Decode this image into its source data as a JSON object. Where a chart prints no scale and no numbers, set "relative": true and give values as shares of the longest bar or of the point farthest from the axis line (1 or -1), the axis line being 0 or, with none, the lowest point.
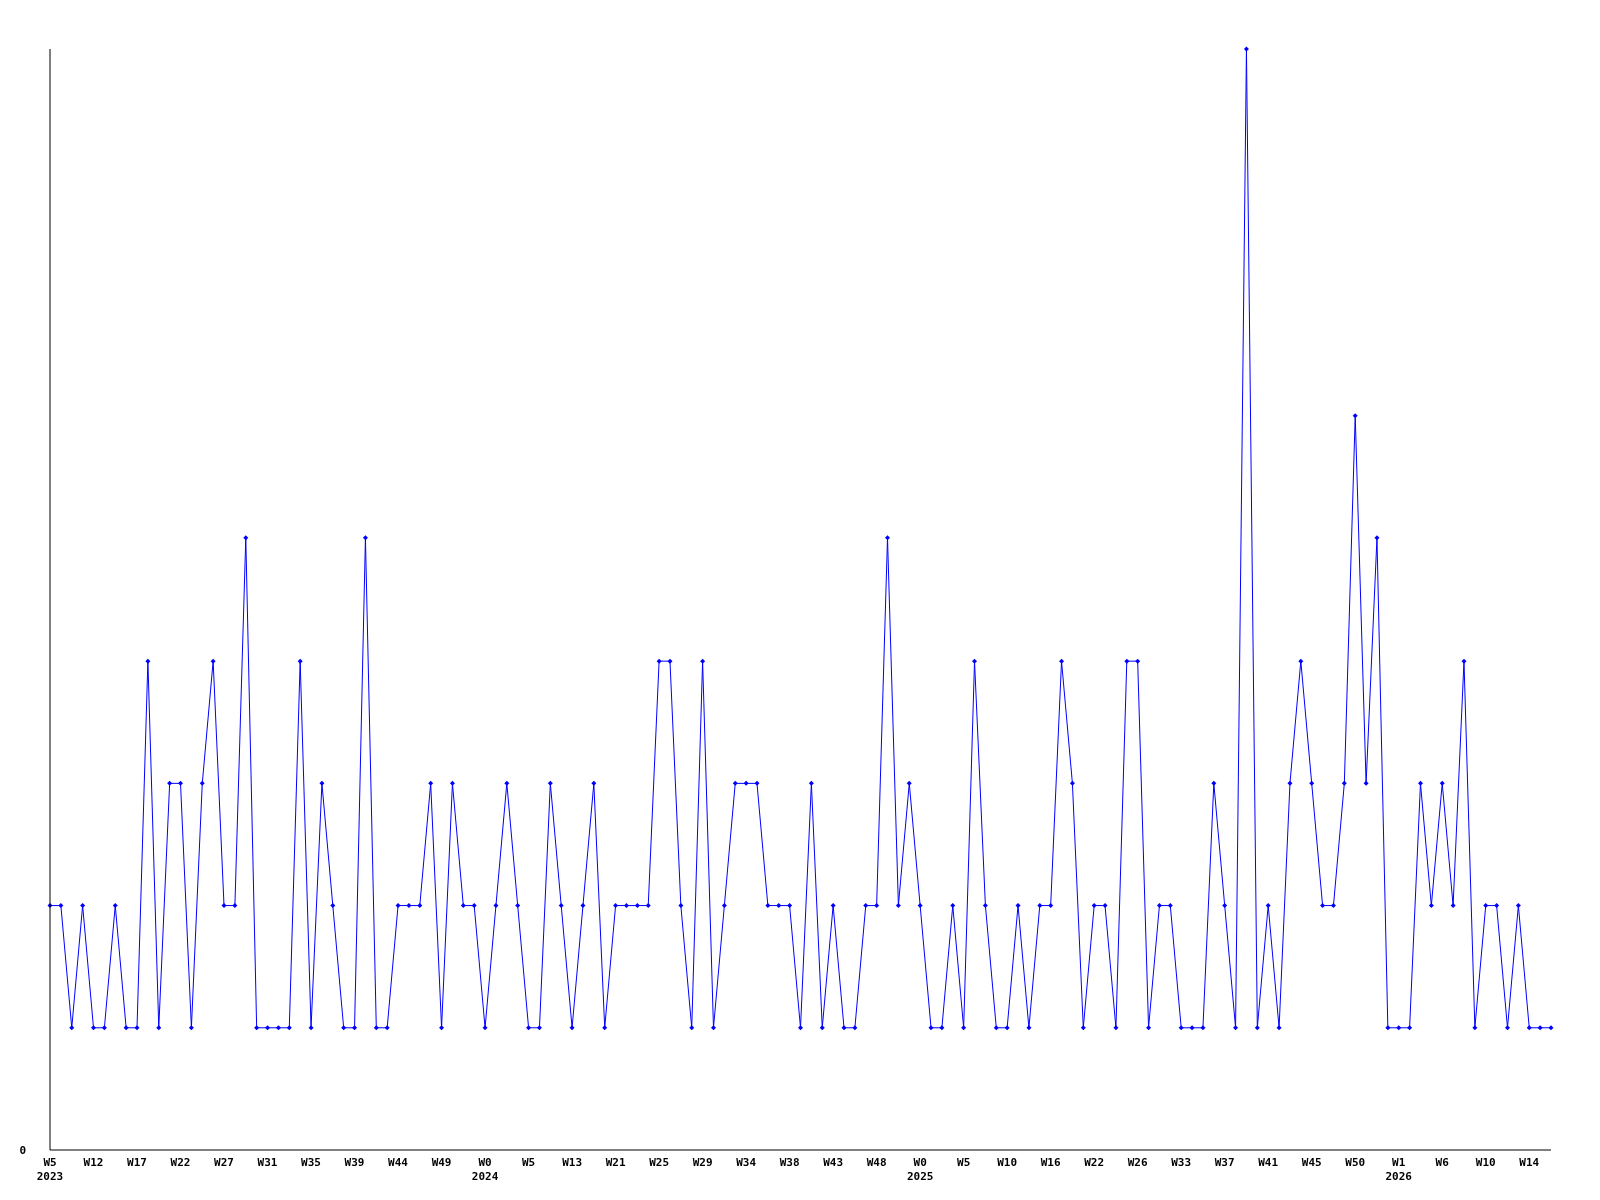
{
  "chart_data": {
    "type": "line",
    "relative": true,
    "marker": "diamond",
    "grid": false,
    "categories": [
      "W5\n2023",
      null,
      null,
      null,
      "W12",
      null,
      null,
      null,
      "W17",
      null,
      null,
      null,
      "W22",
      null,
      null,
      null,
      "W27",
      null,
      null,
      null,
      "W31",
      null,
      null,
      null,
      "W35",
      null,
      null,
      null,
      "W39",
      null,
      null,
      null,
      "W44",
      null,
      null,
      null,
      "W49",
      null,
      null,
      null,
      "W0\n2024",
      null,
      null,
      null,
      "W5",
      null,
      null,
      null,
      "W13",
      null,
      null,
      null,
      "W21",
      null,
      null,
      null,
      "W25",
      null,
      null,
      null,
      "W29",
      null,
      null,
      null,
      "W34",
      null,
      null,
      null,
      "W38",
      null,
      null,
      null,
      "W43",
      null,
      null,
      null,
      "W48",
      null,
      null,
      null,
      "W0\n2025",
      null,
      null,
      null,
      "W5",
      null,
      null,
      null,
      "W10",
      null,
      null,
      null,
      "W16",
      null,
      null,
      null,
      "W22",
      null,
      null,
      null,
      "W26",
      null,
      null,
      null,
      "W33",
      null,
      null,
      null,
      "W37",
      null,
      null,
      null,
      "W41",
      null,
      null,
      null,
      "W45",
      null,
      null,
      null,
      "W50",
      null,
      null,
      null,
      "W1\n2026",
      null,
      null,
      null,
      "W6",
      null,
      null,
      null,
      "W10",
      null,
      null,
      null,
      "W14",
      null,
      null
    ],
    "series": [
      {
        "color": "#0000ff",
        "values": [
          0.222,
          0.222,
          0.111,
          0.222,
          0.111,
          0.111,
          0.222,
          0.111,
          0.111,
          0.444,
          0.111,
          0.333,
          0.333,
          0.111,
          0.333,
          0.444,
          0.222,
          0.222,
          0.556,
          0.111,
          0.111,
          0.111,
          0.111,
          0.444,
          0.111,
          0.333,
          0.222,
          0.111,
          0.111,
          0.556,
          0.111,
          0.111,
          0.222,
          0.222,
          0.222,
          0.333,
          0.111,
          0.333,
          0.222,
          0.222,
          0.111,
          0.222,
          0.333,
          0.222,
          0.111,
          0.111,
          0.333,
          0.222,
          0.111,
          0.222,
          0.333,
          0.111,
          0.222,
          0.222,
          0.222,
          0.222,
          0.444,
          0.444,
          0.222,
          0.111,
          0.444,
          0.111,
          0.222,
          0.333,
          0.333,
          0.333,
          0.222,
          0.222,
          0.222,
          0.111,
          0.333,
          0.111,
          0.222,
          0.111,
          0.111,
          0.222,
          0.222,
          0.556,
          0.222,
          0.333,
          0.222,
          0.111,
          0.111,
          0.222,
          0.111,
          0.444,
          0.222,
          0.111,
          0.111,
          0.222,
          0.111,
          0.222,
          0.222,
          0.444,
          0.333,
          0.111,
          0.222,
          0.222,
          0.111,
          0.444,
          0.444,
          0.111,
          0.222,
          0.222,
          0.111,
          0.111,
          0.111,
          0.333,
          0.222,
          0.111,
          1,
          0.111,
          0.222,
          0.111,
          0.333,
          0.444,
          0.333,
          0.222,
          0.222,
          0.333,
          0.667,
          0.333,
          0.556,
          0.111,
          0.111,
          0.111,
          0.333,
          0.222,
          0.333,
          0.222,
          0.444,
          0.111,
          0.222,
          0.222,
          0.111,
          0.222,
          0.111,
          0.111,
          0.111
        ]
      }
    ],
    "annotations": [
      "0"
    ]
  }
}
